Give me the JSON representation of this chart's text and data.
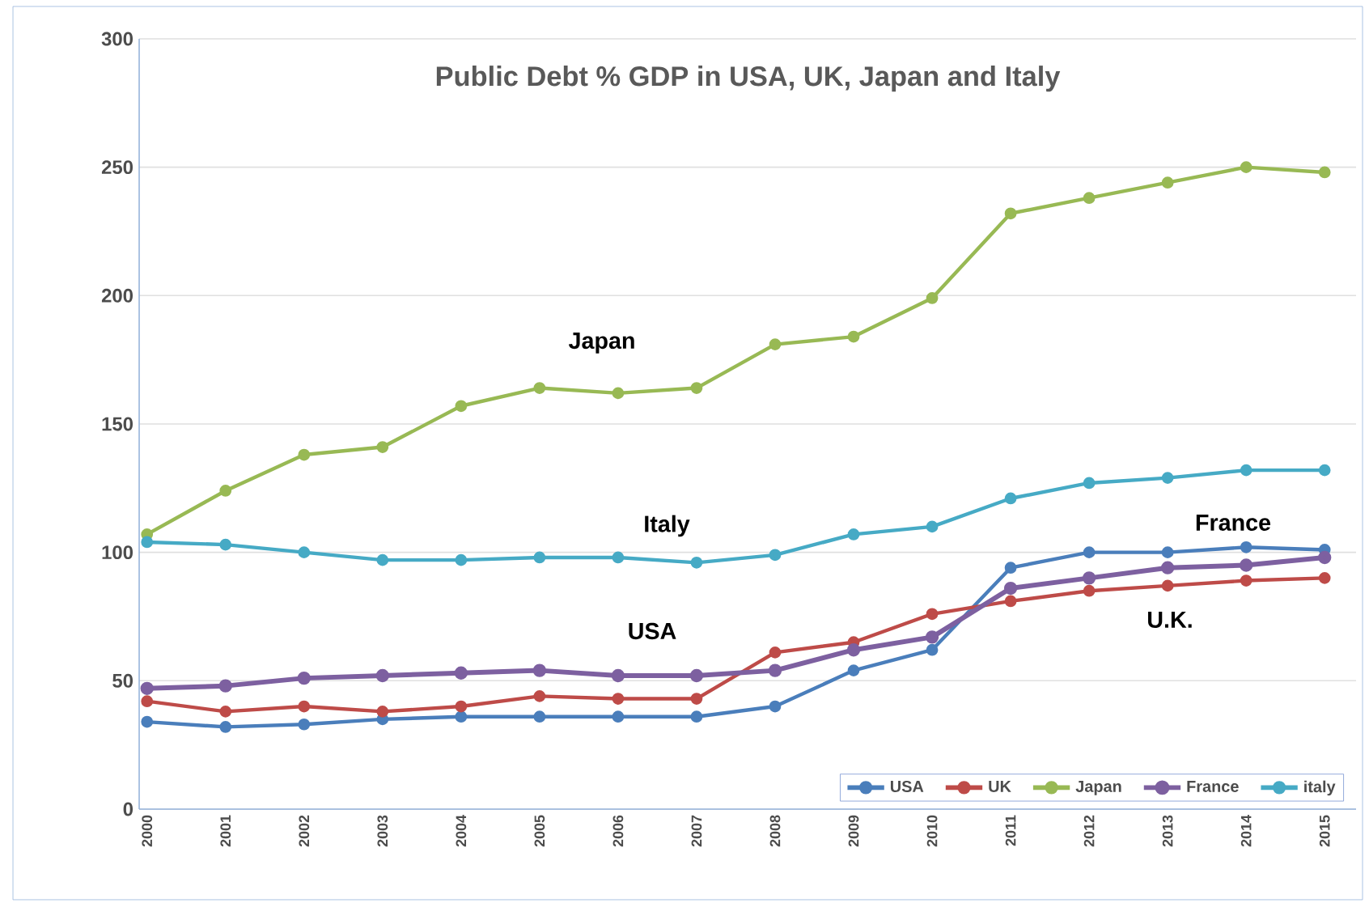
{
  "chart_data": {
    "type": "line",
    "title": "Public Debt % GDP in USA, UK, Japan and Italy",
    "categories": [
      "2000",
      "2001",
      "2002",
      "2003",
      "2004",
      "2005",
      "2006",
      "2007",
      "2008",
      "2009",
      "2010",
      "2011",
      "2012",
      "2013",
      "2014",
      "2015"
    ],
    "series": [
      {
        "name": "USA",
        "color": "#4a7ebb",
        "values": [
          34,
          32,
          33,
          35,
          36,
          36,
          36,
          36,
          40,
          54,
          62,
          94,
          100,
          100,
          102,
          101
        ]
      },
      {
        "name": "UK",
        "color": "#be4b48",
        "values": [
          42,
          38,
          40,
          38,
          40,
          44,
          43,
          43,
          61,
          65,
          76,
          81,
          85,
          87,
          89,
          90
        ]
      },
      {
        "name": "Japan",
        "color": "#98b954",
        "values": [
          107,
          124,
          138,
          141,
          157,
          164,
          162,
          164,
          181,
          184,
          199,
          232,
          238,
          244,
          250,
          248
        ]
      },
      {
        "name": "France",
        "color": "#7d60a0",
        "values": [
          47,
          48,
          51,
          52,
          53,
          54,
          52,
          52,
          54,
          62,
          67,
          86,
          90,
          94,
          95,
          98
        ]
      },
      {
        "name": "italy",
        "color": "#46aac5",
        "values": [
          104,
          103,
          100,
          97,
          97,
          98,
          98,
          96,
          99,
          107,
          110,
          121,
          127,
          129,
          132,
          132
        ]
      }
    ],
    "ylim": [
      0,
      300
    ],
    "yticks": [
      0,
      50,
      100,
      150,
      200,
      250,
      300
    ],
    "grid": "y",
    "legend": "bottom right",
    "marker": "circle",
    "line_style": "solid",
    "annotations": [
      "Japan",
      "Italy",
      "USA",
      "France",
      "U.K."
    ]
  }
}
